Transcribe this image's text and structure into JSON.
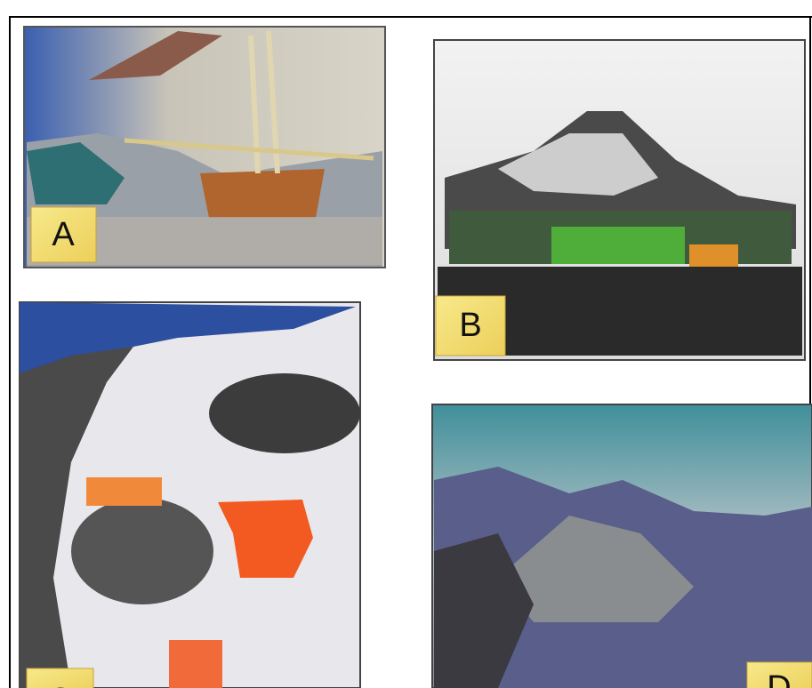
{
  "figure": {
    "panels": [
      {
        "label": "A"
      },
      {
        "label": "B"
      },
      {
        "label": "C"
      },
      {
        "label": "D"
      }
    ]
  }
}
